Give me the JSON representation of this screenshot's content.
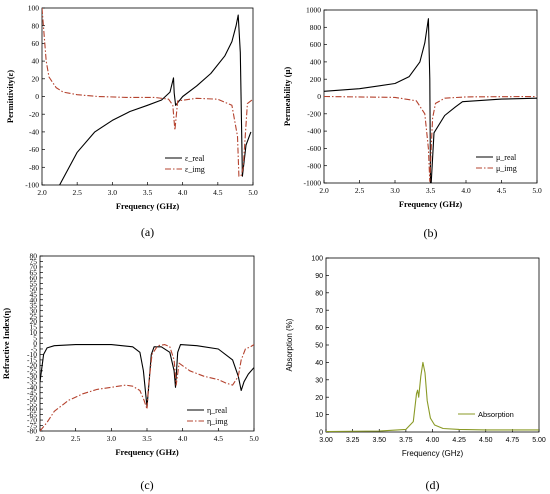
{
  "chart_data": [
    {
      "type": "line",
      "panel_label": "(a)",
      "xlabel": "Frequency (GHz)",
      "ylabel": "Permittivity(ε)",
      "xlim": [
        2.0,
        5.0
      ],
      "ylim": [
        -100,
        100
      ],
      "xticks": [
        "2.0",
        "2.5",
        "3.0",
        "3.5",
        "4.0",
        "4.5",
        "5.0"
      ],
      "yticks": [
        "-100",
        "-80",
        "-60",
        "-40",
        "-20",
        "0",
        "20",
        "40",
        "60",
        "80",
        "100"
      ],
      "legend_position": "bottom-right",
      "series": [
        {
          "name": "ε_real",
          "color": "#000000",
          "style": "solid",
          "x": [
            2.25,
            2.5,
            2.75,
            3.0,
            3.25,
            3.5,
            3.7,
            3.82,
            3.87,
            3.88,
            3.9,
            4.0,
            4.2,
            4.4,
            4.6,
            4.7,
            4.76,
            4.79,
            4.82,
            4.85,
            4.9,
            4.97
          ],
          "y": [
            -100,
            -63,
            -40,
            -27,
            -17,
            -10,
            -4,
            5,
            21,
            4,
            -10,
            0,
            12,
            26,
            46,
            62,
            80,
            92,
            50,
            -90,
            -55,
            -40
          ]
        },
        {
          "name": "ε_img",
          "color": "#b5432f",
          "style": "dashdot",
          "x": [
            2.0,
            2.03,
            2.06,
            2.1,
            2.2,
            2.3,
            2.5,
            2.8,
            3.2,
            3.6,
            3.8,
            3.86,
            3.89,
            3.93,
            4.2,
            4.5,
            4.7,
            4.78,
            4.8,
            4.83,
            4.86,
            4.92,
            5.0
          ],
          "y": [
            100,
            70,
            40,
            22,
            10,
            5,
            2,
            0,
            -1,
            -1,
            -3,
            -10,
            -38,
            -5,
            -2,
            -3,
            -10,
            -45,
            -90,
            -90,
            -80,
            -8,
            -3
          ]
        }
      ]
    },
    {
      "type": "line",
      "panel_label": "(b)",
      "xlabel": "Frequency (GHz)",
      "ylabel": "Permeability (μ)",
      "xlim": [
        2.0,
        5.0
      ],
      "ylim": [
        -1000,
        1000
      ],
      "xticks": [
        "2.0",
        "2.5",
        "3.0",
        "3.5",
        "4.0",
        "4.5",
        "5.0"
      ],
      "yticks": [
        "-1000",
        "-800",
        "-600",
        "-400",
        "-200",
        "0",
        "200",
        "400",
        "600",
        "800",
        "1000"
      ],
      "legend_position": "bottom-right",
      "series": [
        {
          "name": "μ_real",
          "color": "#000000",
          "style": "solid",
          "x": [
            2.0,
            2.5,
            3.0,
            3.2,
            3.35,
            3.42,
            3.47,
            3.49,
            3.5,
            3.51,
            3.55,
            3.7,
            3.85,
            3.95,
            4.5,
            5.0
          ],
          "y": [
            60,
            90,
            150,
            230,
            400,
            620,
            900,
            200,
            -1000,
            -1000,
            -420,
            -220,
            -120,
            -60,
            -30,
            -20
          ]
        },
        {
          "name": "μ_img",
          "color": "#b5432f",
          "style": "dashdot",
          "x": [
            2.0,
            3.0,
            3.3,
            3.42,
            3.47,
            3.49,
            3.51,
            3.53,
            3.57,
            3.7,
            4.0,
            5.0
          ],
          "y": [
            0,
            -10,
            -50,
            -200,
            -600,
            -980,
            -600,
            -250,
            -80,
            -20,
            -5,
            0
          ]
        }
      ]
    },
    {
      "type": "line",
      "panel_label": "(c)",
      "xlabel": "Frequency (GHz)",
      "ylabel": "Refractive Index(η)",
      "xlim": [
        2.0,
        5.0
      ],
      "ylim": [
        -80,
        80
      ],
      "xticks": [
        "2.0",
        "2.5",
        "3.0",
        "3.5",
        "4.0",
        "4.5",
        "5.0"
      ],
      "yticks": [
        "-80",
        "-75",
        "-70",
        "-65",
        "-60",
        "-55",
        "-50",
        "-45",
        "-40",
        "-35",
        "-30",
        "-25",
        "-20",
        "-15",
        "-10",
        "-5",
        "0",
        "5",
        "10",
        "15",
        "20",
        "25",
        "30",
        "35",
        "40",
        "45",
        "50",
        "55",
        "60",
        "65",
        "70",
        "75",
        "80"
      ],
      "legend_position": "bottom-right",
      "series": [
        {
          "name": "η_real",
          "color": "#000000",
          "style": "solid",
          "x": [
            2.0,
            2.05,
            2.1,
            2.2,
            2.5,
            3.0,
            3.3,
            3.4,
            3.45,
            3.5,
            3.53,
            3.56,
            3.6,
            3.7,
            3.82,
            3.88,
            3.9,
            3.93,
            3.97,
            4.2,
            4.5,
            4.7,
            4.78,
            4.82,
            4.86,
            4.92,
            5.0
          ],
          "y": [
            -35,
            -10,
            -4,
            -2,
            -1,
            -1,
            -3,
            -8,
            -25,
            -58,
            -35,
            -10,
            -3,
            -3,
            -8,
            -25,
            -40,
            -8,
            -1,
            -2,
            -5,
            -15,
            -30,
            -43,
            -35,
            -28,
            -22
          ]
        },
        {
          "name": "η_img",
          "color": "#b5432f",
          "style": "dashdot",
          "x": [
            2.0,
            2.1,
            2.2,
            2.4,
            2.6,
            2.8,
            3.0,
            3.2,
            3.3,
            3.4,
            3.46,
            3.5,
            3.52,
            3.57,
            3.65,
            3.75,
            3.82,
            3.88,
            3.91,
            3.95,
            4.1,
            4.3,
            4.5,
            4.6,
            4.7,
            4.78,
            4.82,
            4.88,
            4.95,
            5.0
          ],
          "y": [
            -80,
            -72,
            -62,
            -52,
            -46,
            -42,
            -40,
            -38,
            -39,
            -43,
            -52,
            -60,
            -40,
            -10,
            -2,
            -1,
            -3,
            -15,
            -38,
            -18,
            -25,
            -30,
            -33,
            -36,
            -38,
            -30,
            -15,
            -5,
            -3,
            -1
          ]
        }
      ]
    },
    {
      "type": "line",
      "panel_label": "(d)",
      "xlabel": "Frequency (GHz)",
      "ylabel": "Absorption (%)",
      "xlim": [
        3.0,
        5.0
      ],
      "ylim": [
        0,
        100
      ],
      "xticks": [
        "3.00",
        "3.25",
        "3.50",
        "3.75",
        "4.00",
        "4.25",
        "4.50",
        "4.75",
        "5.00"
      ],
      "yticks": [
        "0",
        "10",
        "20",
        "30",
        "40",
        "50",
        "60",
        "70",
        "80",
        "90",
        "100"
      ],
      "legend_position": "bottom-right",
      "series": [
        {
          "name": "Absorption",
          "color": "#8a9a26",
          "style": "solid",
          "x": [
            3.0,
            3.5,
            3.75,
            3.82,
            3.85,
            3.86,
            3.87,
            3.89,
            3.91,
            3.93,
            3.95,
            3.98,
            4.02,
            4.1,
            4.25,
            4.5,
            5.0
          ],
          "y": [
            0.3,
            0.6,
            1.5,
            6,
            22,
            24,
            20,
            32,
            40,
            34,
            18,
            8,
            4,
            2,
            1.5,
            1.2,
            1.2
          ]
        }
      ]
    }
  ]
}
